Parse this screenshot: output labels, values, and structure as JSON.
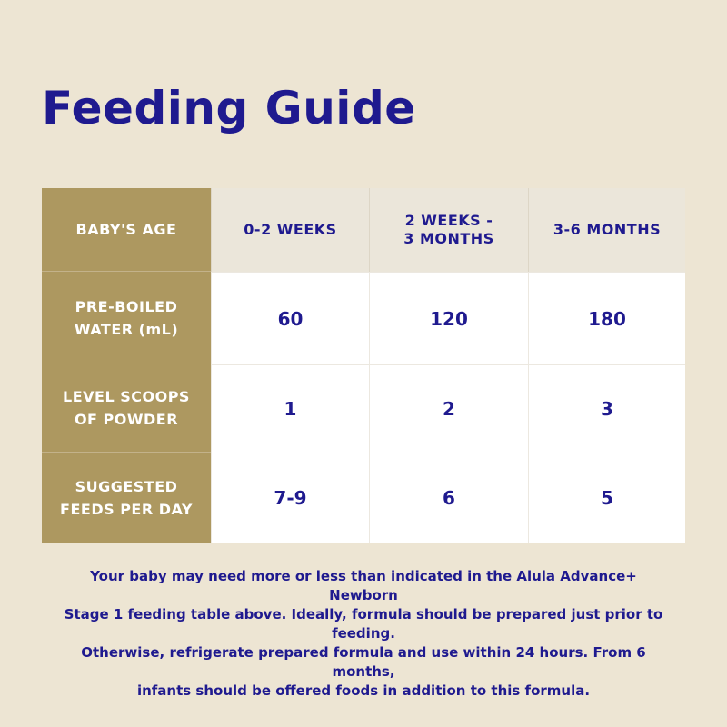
{
  "title": "Feeding Guide",
  "table": {
    "corner": "BABY'S AGE",
    "columns": [
      "0-2 WEEKS",
      "2 WEEKS - 3 MONTHS",
      "3-6 MONTHS"
    ],
    "column_lines": [
      [
        "0-2 WEEKS"
      ],
      [
        "2 WEEKS -",
        "3 MONTHS"
      ],
      [
        "3-6 MONTHS"
      ]
    ],
    "rows": [
      {
        "label_lines": [
          "PRE-BOILED",
          "WATER (mL)"
        ],
        "values": [
          "60",
          "120",
          "180"
        ]
      },
      {
        "label_lines": [
          "LEVEL SCOOPS",
          "OF POWDER"
        ],
        "values": [
          "1",
          "2",
          "3"
        ]
      },
      {
        "label_lines": [
          "SUGGESTED",
          "FEEDS PER DAY"
        ],
        "values": [
          "7-9",
          "6",
          "5"
        ]
      }
    ]
  },
  "note_lines": [
    "Your baby may need more or less than indicated in the Alula Advance+ Newborn",
    "Stage 1 feeding table above. Ideally, formula should be prepared just prior to feeding.",
    "Otherwise, refrigerate prepared formula and use within 24 hours. From 6 months,",
    "infants should be offered foods in addition to this formula."
  ],
  "colors": {
    "background": "#ede5d3",
    "row_header": "#ad9860",
    "column_header": "#ebe6da",
    "text": "#1f1a8f"
  }
}
